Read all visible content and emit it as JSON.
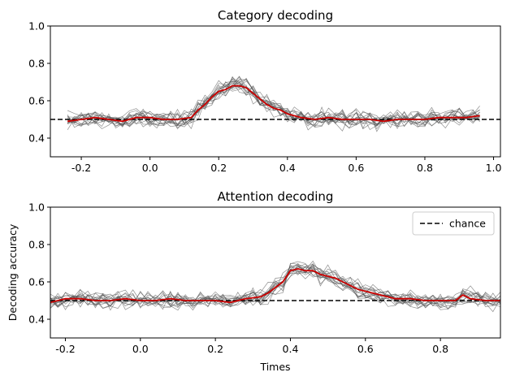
{
  "chart_data": [
    {
      "type": "line",
      "title": "Category decoding",
      "xlabel": "",
      "ylabel": "",
      "xlim": [
        -0.29,
        1.02
      ],
      "ylim": [
        0.3,
        1.0
      ],
      "xticks": [
        "-0.2",
        "0.0",
        "0.2",
        "0.4",
        "0.6",
        "0.8",
        "1.0"
      ],
      "xtick_values": [
        -0.2,
        0.0,
        0.2,
        0.4,
        0.6,
        0.8,
        1.0
      ],
      "yticks": [
        "0.4",
        "0.6",
        "0.8",
        "1.0"
      ],
      "ytick_values": [
        0.4,
        0.6,
        0.8,
        1.0
      ],
      "chance": 0.5,
      "mean_series": {
        "color": "#cc0000",
        "x": [
          -0.24,
          -0.2,
          -0.16,
          -0.12,
          -0.08,
          -0.04,
          0.0,
          0.04,
          0.08,
          0.12,
          0.14,
          0.16,
          0.18,
          0.2,
          0.22,
          0.24,
          0.26,
          0.28,
          0.3,
          0.32,
          0.34,
          0.36,
          0.38,
          0.4,
          0.44,
          0.48,
          0.52,
          0.56,
          0.6,
          0.64,
          0.68,
          0.72,
          0.76,
          0.8,
          0.84,
          0.88,
          0.92,
          0.96
        ],
        "y": [
          0.49,
          0.5,
          0.51,
          0.5,
          0.49,
          0.51,
          0.51,
          0.5,
          0.5,
          0.51,
          0.55,
          0.58,
          0.62,
          0.65,
          0.66,
          0.68,
          0.68,
          0.67,
          0.64,
          0.61,
          0.58,
          0.56,
          0.55,
          0.53,
          0.51,
          0.5,
          0.51,
          0.5,
          0.5,
          0.5,
          0.49,
          0.5,
          0.5,
          0.5,
          0.51,
          0.51,
          0.51,
          0.52
        ]
      },
      "individual_series": {
        "count": 16,
        "color": "#555555"
      }
    },
    {
      "type": "line",
      "title": "Attention decoding",
      "xlabel": "Times",
      "ylabel": "Decoding accuracy",
      "xlim": [
        -0.24,
        0.96
      ],
      "ylim": [
        0.3,
        1.0
      ],
      "xticks": [
        "-0.2",
        "0.0",
        "0.2",
        "0.4",
        "0.6",
        "0.8"
      ],
      "xtick_values": [
        -0.2,
        0.0,
        0.2,
        0.4,
        0.6,
        0.8
      ],
      "yticks": [
        "0.4",
        "0.6",
        "0.8",
        "1.0"
      ],
      "ytick_values": [
        0.4,
        0.6,
        0.8,
        1.0
      ],
      "chance": 0.5,
      "legend": {
        "position": "top-right",
        "entries": [
          {
            "label": "chance",
            "style": "dashed",
            "color": "#000000"
          }
        ]
      },
      "mean_series": {
        "color": "#cc0000",
        "x": [
          -0.24,
          -0.2,
          -0.16,
          -0.12,
          -0.08,
          -0.04,
          0.0,
          0.04,
          0.08,
          0.12,
          0.16,
          0.2,
          0.24,
          0.28,
          0.32,
          0.34,
          0.36,
          0.38,
          0.4,
          0.42,
          0.44,
          0.46,
          0.48,
          0.5,
          0.52,
          0.54,
          0.56,
          0.58,
          0.6,
          0.64,
          0.68,
          0.72,
          0.76,
          0.8,
          0.84,
          0.86,
          0.88,
          0.92,
          0.96
        ],
        "y": [
          0.49,
          0.51,
          0.51,
          0.5,
          0.5,
          0.51,
          0.5,
          0.5,
          0.51,
          0.5,
          0.5,
          0.5,
          0.49,
          0.51,
          0.52,
          0.54,
          0.57,
          0.6,
          0.66,
          0.67,
          0.66,
          0.66,
          0.64,
          0.63,
          0.62,
          0.6,
          0.58,
          0.56,
          0.55,
          0.53,
          0.51,
          0.51,
          0.5,
          0.5,
          0.5,
          0.53,
          0.51,
          0.5,
          0.5
        ]
      },
      "individual_series": {
        "count": 16,
        "color": "#555555"
      }
    }
  ]
}
